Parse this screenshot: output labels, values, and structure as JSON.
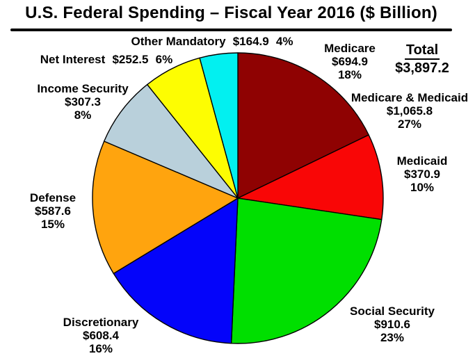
{
  "chart_data": {
    "type": "pie",
    "title": "U.S. Federal Spending – Fiscal Year 2016 ($ Billion)",
    "unit": "$ Billion",
    "direction": "clockwise",
    "start_angle_deg": 0,
    "total_label": "Total",
    "total_value_label": "$3,897.2",
    "total_value": 3897.2,
    "legend": "none",
    "slices": [
      {
        "name": "Medicare",
        "value": 694.9,
        "value_label": "$694.9",
        "pct": 18,
        "pct_label": "18%",
        "color": "#8F0202"
      },
      {
        "name": "Medicaid",
        "value": 370.9,
        "value_label": "$370.9",
        "pct": 10,
        "pct_label": "10%",
        "color": "#F90606"
      },
      {
        "name": "Social Security",
        "value": 910.6,
        "value_label": "$910.6",
        "pct": 23,
        "pct_label": "23%",
        "color": "#00DF00"
      },
      {
        "name": "Discretionary",
        "value": 608.4,
        "value_label": "$608.4",
        "pct": 16,
        "pct_label": "16%",
        "color": "#0404FA"
      },
      {
        "name": "Defense",
        "value": 587.6,
        "value_label": "$587.6",
        "pct": 15,
        "pct_label": "15%",
        "color": "#FFA40E"
      },
      {
        "name": "Income Security",
        "value": 307.3,
        "value_label": "$307.3",
        "pct": 8,
        "pct_label": "8%",
        "color": "#B9D0DB"
      },
      {
        "name": "Net Interest",
        "value": 252.5,
        "value_label": "$252.5",
        "pct": 6,
        "pct_label": "6%",
        "color": "#FDFD02"
      },
      {
        "name": "Other Mandatory",
        "value": 164.9,
        "value_label": "$164.9",
        "pct": 4,
        "pct_label": "4%",
        "color": "#02F0F0"
      }
    ],
    "annotation": {
      "name": "Medicare & Medicaid",
      "value": 1065.8,
      "value_label": "$1,065.8",
      "pct": 27,
      "pct_label": "27%"
    }
  }
}
